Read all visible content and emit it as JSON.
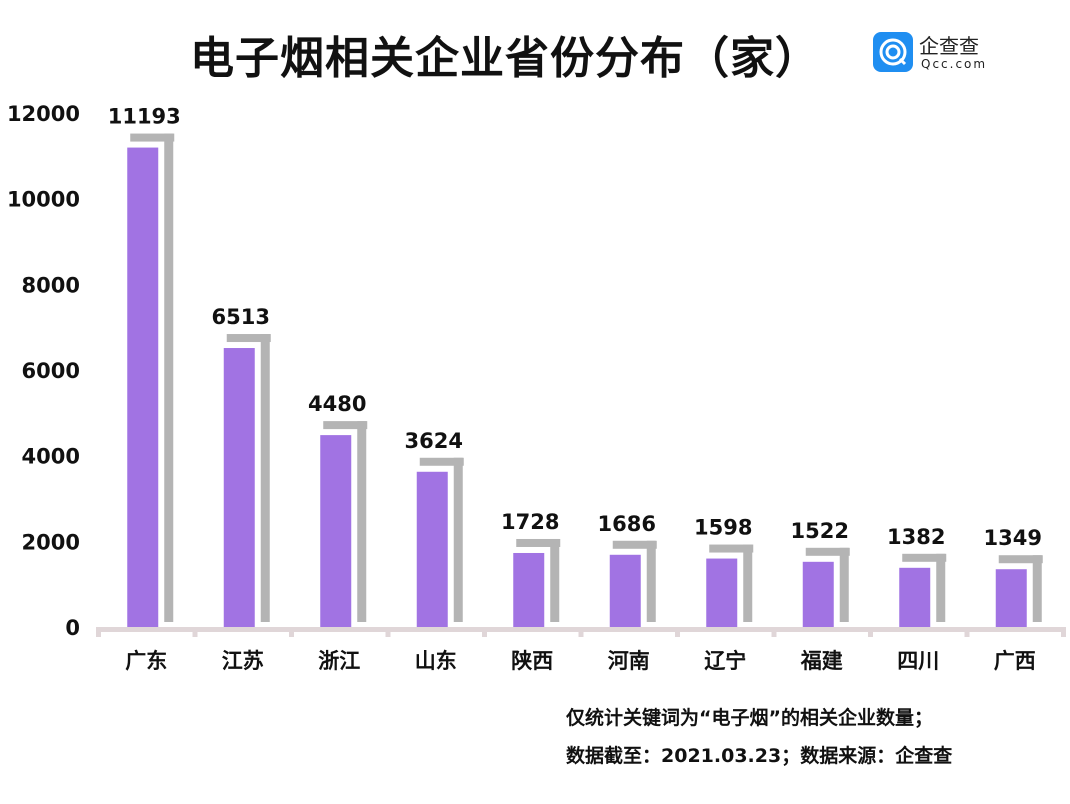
{
  "chart_data": {
    "type": "bar",
    "title": "电子烟相关企业省份分布（家）",
    "categories": [
      "广东",
      "江苏",
      "浙江",
      "山东",
      "陕西",
      "河南",
      "辽宁",
      "福建",
      "四川",
      "广西"
    ],
    "values": [
      11193,
      6513,
      4480,
      3624,
      1728,
      1686,
      1598,
      1522,
      1382,
      1349
    ],
    "ylim": [
      0,
      12000
    ],
    "yticks": [
      "0",
      "2000",
      "4000",
      "6000",
      "8000",
      "10000",
      "12000"
    ],
    "xlabel": "",
    "ylabel": "",
    "grid": false,
    "bar_color": "#a173e3",
    "shadow_color": "#b4b4b4",
    "axis_color": "#e0d6d8"
  },
  "logo": {
    "cn": "企查查",
    "en": "Qcc.com"
  },
  "notes": [
    "仅统计关键词为“电子烟”的相关企业数量；",
    "数据截至：2021.03.23；数据来源：企查查"
  ]
}
